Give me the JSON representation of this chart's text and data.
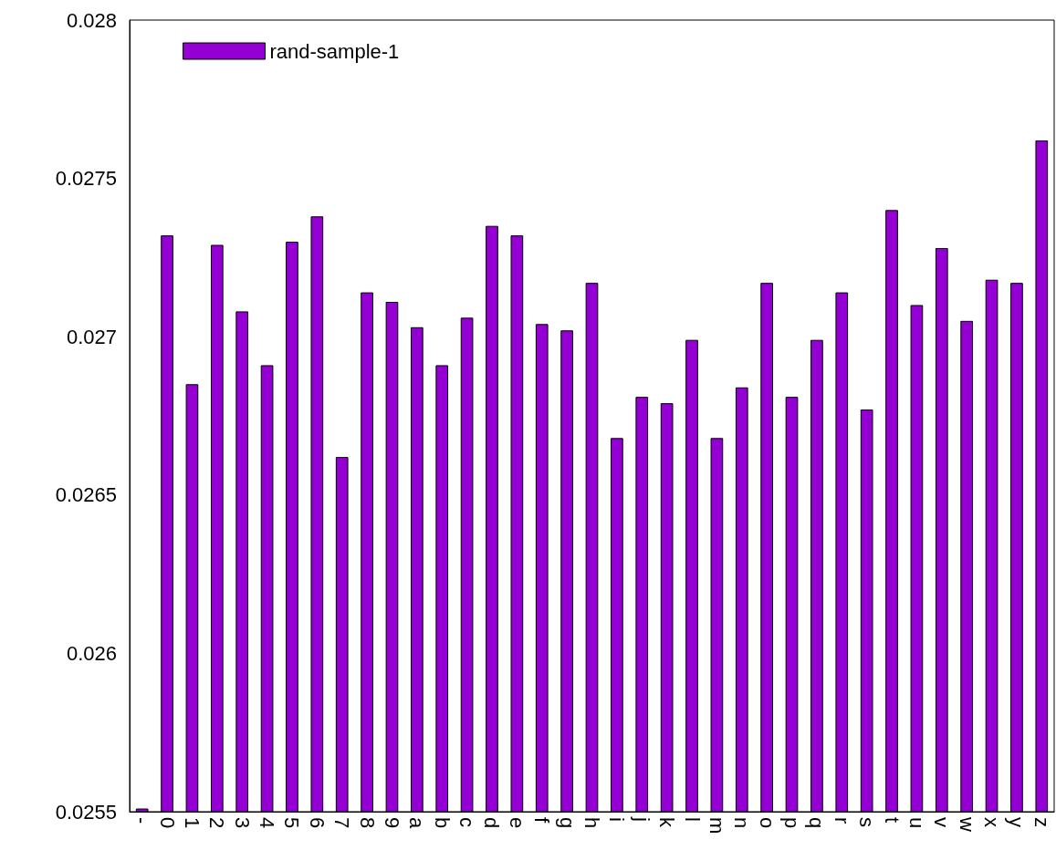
{
  "chart_data": {
    "type": "bar",
    "categories": [
      "-",
      "0",
      "1",
      "2",
      "3",
      "4",
      "5",
      "6",
      "7",
      "8",
      "9",
      "a",
      "b",
      "c",
      "d",
      "e",
      "f",
      "g",
      "h",
      "i",
      "j",
      "k",
      "l",
      "m",
      "n",
      "o",
      "p",
      "q",
      "r",
      "s",
      "t",
      "u",
      "v",
      "w",
      "x",
      "y",
      "z"
    ],
    "series": [
      {
        "name": "rand-sample-1",
        "color": "#9400d3",
        "values": [
          0.02551,
          0.02732,
          0.02685,
          0.02729,
          0.02708,
          0.02691,
          0.0273,
          0.02738,
          0.02662,
          0.02714,
          0.02711,
          0.02703,
          0.02691,
          0.02706,
          0.02735,
          0.02732,
          0.02704,
          0.02702,
          0.02717,
          0.02668,
          0.02681,
          0.02679,
          0.02699,
          0.02668,
          0.02684,
          0.02717,
          0.02681,
          0.02699,
          0.02714,
          0.02677,
          0.0274,
          0.0271,
          0.02728,
          0.02705,
          0.02718,
          0.02717,
          0.02762
        ]
      }
    ],
    "ylim": [
      0.0255,
      0.028
    ],
    "yticks": [
      0.0255,
      0.026,
      0.0265,
      0.027,
      0.0275,
      0.028
    ],
    "grid": false,
    "legend": "top left"
  }
}
